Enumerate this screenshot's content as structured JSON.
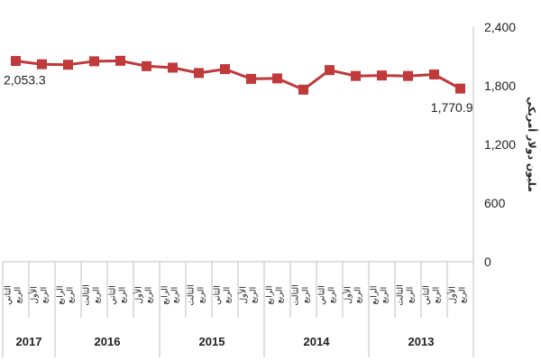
{
  "chart_data": {
    "type": "line",
    "x_direction": "right-to-left",
    "ylabel": "مليون دولار أمريكي",
    "ylim": [
      0,
      2400
    ],
    "yticks": [
      "0",
      "600",
      "1,200",
      "1,800",
      "2,400"
    ],
    "ytick_values": [
      0,
      600,
      1200,
      1800,
      2400
    ],
    "grid": false,
    "legend": "none",
    "color": "#c0393b",
    "categories": [
      {
        "year": "2013",
        "quarter": [
          "الربع",
          "الأول"
        ]
      },
      {
        "year": "2013",
        "quarter": [
          "الربع",
          "الثاني"
        ]
      },
      {
        "year": "2013",
        "quarter": [
          "الربع",
          "الثالث"
        ]
      },
      {
        "year": "2013",
        "quarter": [
          "الربع",
          "الرابع"
        ]
      },
      {
        "year": "2014",
        "quarter": [
          "الربع",
          "الأول"
        ]
      },
      {
        "year": "2014",
        "quarter": [
          "الربع",
          "الثاني"
        ]
      },
      {
        "year": "2014",
        "quarter": [
          "الربع",
          "الثالث"
        ]
      },
      {
        "year": "2014",
        "quarter": [
          "الربع",
          "الرابع"
        ]
      },
      {
        "year": "2015",
        "quarter": [
          "الربع",
          "الأول"
        ]
      },
      {
        "year": "2015",
        "quarter": [
          "الربع",
          "الثاني"
        ]
      },
      {
        "year": "2015",
        "quarter": [
          "الربع",
          "الثالث"
        ]
      },
      {
        "year": "2015",
        "quarter": [
          "الربع",
          "الرابع"
        ]
      },
      {
        "year": "2016",
        "quarter": [
          "الربع",
          "الأول"
        ]
      },
      {
        "year": "2016",
        "quarter": [
          "الربع",
          "الثاني"
        ]
      },
      {
        "year": "2016",
        "quarter": [
          "الربع",
          "الثالث"
        ]
      },
      {
        "year": "2016",
        "quarter": [
          "الربع",
          "الرابع"
        ]
      },
      {
        "year": "2017",
        "quarter": [
          "الربع",
          "الأول"
        ]
      },
      {
        "year": "2017",
        "quarter": [
          "الربع",
          "الثاني"
        ]
      }
    ],
    "years": [
      "2013",
      "2014",
      "2015",
      "2016",
      "2017"
    ],
    "values": [
      1770.9,
      1915,
      1900,
      1905,
      1900,
      1960,
      1760,
      1875,
      1870,
      1970,
      1930,
      1985,
      2000,
      2055,
      2050,
      2015,
      2020,
      2053.3
    ],
    "data_labels": [
      {
        "index": 0,
        "text": "1,770.9"
      },
      {
        "index": 17,
        "text": "2,053.3"
      }
    ]
  }
}
